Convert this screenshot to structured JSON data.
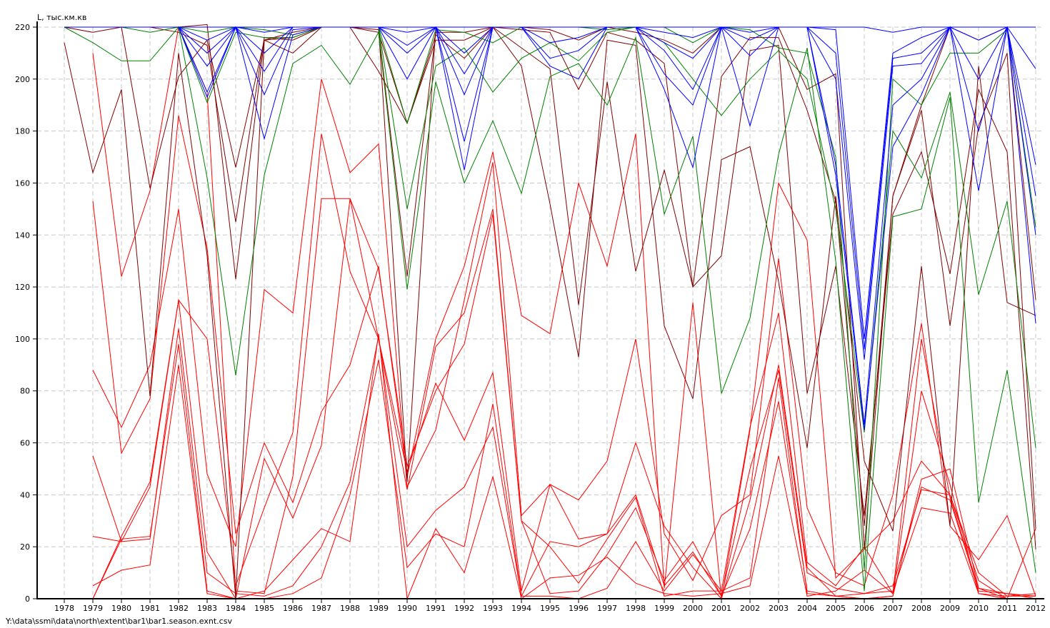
{
  "footer": {
    "path": "Y:\\data\\ssmi\\data\\north\\extent\\bar1\\bar1.season.exnt.csv"
  },
  "chart_data": {
    "type": "line",
    "title": "",
    "ylabel": "L, тыс.км.кв",
    "xlabel": "",
    "x": [
      1978,
      1979,
      1980,
      1981,
      1982,
      1983,
      1984,
      1985,
      1986,
      1987,
      1988,
      1989,
      1990,
      1991,
      1992,
      1993,
      1994,
      1995,
      1996,
      1997,
      1998,
      1999,
      2000,
      2001,
      2002,
      2003,
      2004,
      2005,
      2006,
      2007,
      2008,
      2009,
      2010,
      2011,
      2012
    ],
    "xlim": [
      1978,
      2012
    ],
    "ylim": [
      0,
      220
    ],
    "yticks": [
      0,
      20,
      40,
      60,
      80,
      100,
      120,
      140,
      160,
      180,
      200,
      220
    ],
    "grid": true,
    "legend": "none",
    "colors": {
      "red": "#ff0000",
      "darkred": "#800000",
      "green": "#008000",
      "blue": "#0000ff"
    },
    "series": [
      {
        "color": "#ff0000",
        "values": [
          null,
          0,
          23,
          24,
          98,
          3,
          0,
          3,
          15,
          27,
          22,
          102,
          0,
          27,
          10,
          47,
          0,
          8,
          9,
          16,
          6,
          2,
          1,
          2,
          5,
          55,
          1,
          3,
          11,
          2,
          43,
          38,
          3,
          2,
          1
        ]
      },
      {
        "color": "#ff0000",
        "values": [
          null,
          5,
          11,
          13,
          90,
          2,
          0,
          0,
          2,
          8,
          40,
          92,
          12,
          25,
          20,
          75,
          1,
          1,
          0,
          4,
          22,
          3,
          17,
          3,
          8,
          85,
          2,
          1,
          2,
          3,
          35,
          33,
          2,
          1,
          1
        ]
      },
      {
        "color": "#ff0000",
        "values": [
          null,
          24,
          22,
          23,
          104,
          10,
          2,
          1,
          5,
          20,
          45,
          101,
          20,
          34,
          43,
          66,
          1,
          22,
          20,
          25,
          40,
          5,
          18,
          1,
          50,
          88,
          10,
          4,
          2,
          5,
          42,
          40,
          10,
          1,
          2
        ]
      },
      {
        "color": "#ff0000",
        "values": [
          null,
          55,
          22,
          43,
          115,
          18,
          0,
          54,
          31,
          59,
          154,
          127,
          51,
          80,
          98,
          148,
          30,
          2,
          3,
          17,
          35,
          7,
          22,
          1,
          27,
          76,
          3,
          1,
          0,
          1,
          46,
          50,
          4,
          2,
          0
        ]
      },
      {
        "color": "#ff0000",
        "values": [
          null,
          88,
          66,
          90,
          150,
          48,
          20,
          119,
          110,
          200,
          164,
          175,
          43,
          65,
          115,
          168,
          32,
          44,
          38,
          53,
          100,
          25,
          7,
          32,
          40,
          131,
          35,
          10,
          5,
          40,
          106,
          28,
          15,
          32,
          1
        ]
      },
      {
        "color": "#ff0000",
        "values": [
          null,
          153,
          56,
          77,
          186,
          135,
          25,
          60,
          37,
          72,
          90,
          128,
          47,
          100,
          128,
          172,
          109,
          102,
          160,
          128,
          179,
          4,
          114,
          0,
          65,
          160,
          138,
          8,
          19,
          30,
          53,
          40,
          7,
          0,
          27
        ]
      },
      {
        "color": "#ff0000",
        "values": [
          null,
          210,
          124,
          157,
          220,
          195,
          3,
          2,
          47,
          154,
          154,
          100,
          49,
          83,
          61,
          87,
          3,
          44,
          23,
          25,
          60,
          28,
          12,
          0,
          38,
          90,
          12,
          1,
          0,
          1,
          80,
          44,
          2,
          0,
          0
        ]
      },
      {
        "color": "#ff0000",
        "values": [
          null,
          0,
          24,
          45,
          115,
          100,
          5,
          35,
          64,
          179,
          126,
          100,
          42,
          97,
          110,
          150,
          30,
          20,
          6,
          23,
          39,
          1,
          3,
          3,
          66,
          110,
          14,
          5,
          20,
          2,
          100,
          39,
          4,
          0,
          0
        ]
      },
      {
        "color": "#800000",
        "values": [
          214,
          164,
          196,
          78,
          210,
          132,
          0,
          215,
          216,
          220,
          220,
          218,
          183,
          215,
          215,
          220,
          205,
          152,
          93,
          215,
          213,
          105,
          77,
          169,
          174,
          122,
          58,
          155,
          53,
          26,
          128,
          28,
          205,
          114,
          109
        ]
      },
      {
        "color": "#800000",
        "values": [
          220,
          218,
          220,
          158,
          201,
          215,
          166,
          215,
          210,
          220,
          220,
          203,
          183,
          217,
          208,
          220,
          212,
          204,
          113,
          199,
          126,
          165,
          120,
          132,
          211,
          213,
          79,
          128,
          32,
          148,
          172,
          125,
          196,
          172,
          19
        ]
      },
      {
        "color": "#800000",
        "values": [
          220,
          220,
          220,
          220,
          218,
          213,
          145,
          216,
          215,
          220,
          220,
          219,
          124,
          218,
          218,
          220,
          219,
          218,
          196,
          218,
          215,
          206,
          120,
          201,
          216,
          216,
          188,
          153,
          28,
          155,
          188,
          105,
          182,
          210,
          27
        ]
      },
      {
        "color": "#800000",
        "values": [
          220,
          220,
          220,
          220,
          220,
          221,
          123,
          215,
          218,
          220,
          220,
          220,
          45,
          220,
          220,
          220,
          220,
          219,
          215,
          220,
          218,
          215,
          210,
          220,
          220,
          220,
          196,
          202,
          19,
          155,
          190,
          220,
          215,
          220,
          115
        ]
      },
      {
        "color": "#008000",
        "values": [
          220,
          214,
          207,
          207,
          220,
          162,
          86,
          163,
          206,
          213,
          198,
          218,
          119,
          199,
          160,
          184,
          156,
          201,
          206,
          190,
          216,
          148,
          178,
          79,
          108,
          171,
          212,
          130,
          3,
          147,
          150,
          193,
          37,
          88,
          10
        ]
      },
      {
        "color": "#008000",
        "values": [
          220,
          220,
          220,
          218,
          220,
          191,
          218,
          216,
          216,
          220,
          220,
          220,
          150,
          205,
          212,
          195,
          208,
          214,
          207,
          218,
          220,
          214,
          200,
          186,
          200,
          211,
          200,
          150,
          64,
          180,
          162,
          195,
          117,
          153,
          58
        ]
      },
      {
        "color": "#008000",
        "values": [
          220,
          220,
          220,
          220,
          220,
          218,
          220,
          219,
          217,
          220,
          220,
          220,
          183,
          219,
          218,
          214,
          220,
          220,
          220,
          219,
          220,
          220,
          214,
          220,
          219,
          212,
          210,
          170,
          11,
          200,
          190,
          210,
          210,
          219,
          143
        ]
      },
      {
        "color": "#0000ff",
        "values": [
          220,
          220,
          220,
          220,
          220,
          193,
          220,
          177,
          217,
          220,
          220,
          220,
          200,
          220,
          165,
          220,
          220,
          205,
          200,
          220,
          220,
          196,
          166,
          220,
          182,
          220,
          220,
          163,
          65,
          174,
          194,
          220,
          157,
          220,
          106
        ]
      },
      {
        "color": "#0000ff",
        "values": [
          220,
          220,
          220,
          220,
          220,
          195,
          220,
          194,
          219,
          220,
          220,
          220,
          210,
          220,
          176,
          220,
          220,
          208,
          211,
          220,
          220,
          202,
          190,
          220,
          209,
          220,
          220,
          167,
          67,
          190,
          200,
          220,
          180,
          220,
          140
        ]
      },
      {
        "color": "#0000ff",
        "values": [
          220,
          220,
          220,
          220,
          220,
          205,
          220,
          203,
          220,
          220,
          220,
          220,
          213,
          220,
          194,
          220,
          220,
          214,
          216,
          220,
          220,
          211,
          196,
          220,
          215,
          220,
          220,
          200,
          92,
          205,
          206,
          220,
          200,
          220,
          155
        ]
      },
      {
        "color": "#0000ff",
        "values": [
          220,
          220,
          220,
          220,
          220,
          210,
          220,
          210,
          220,
          220,
          220,
          220,
          218,
          220,
          202,
          220,
          220,
          220,
          220,
          220,
          220,
          214,
          208,
          220,
          218,
          220,
          220,
          210,
          96,
          208,
          210,
          220,
          215,
          220,
          167
        ]
      },
      {
        "color": "#0000ff",
        "values": [
          220,
          220,
          220,
          220,
          220,
          215,
          220,
          218,
          220,
          220,
          220,
          220,
          220,
          220,
          210,
          220,
          220,
          220,
          220,
          220,
          220,
          218,
          216,
          220,
          220,
          220,
          220,
          219,
          100,
          210,
          216,
          220,
          220,
          220,
          204
        ]
      },
      {
        "color": "#0000ff",
        "values": [
          220,
          220,
          220,
          220,
          220,
          220,
          220,
          220,
          220,
          220,
          220,
          220,
          220,
          220,
          220,
          220,
          220,
          220,
          220,
          220,
          220,
          220,
          220,
          220,
          220,
          220,
          220,
          220,
          220,
          218,
          220,
          220,
          220,
          220,
          220
        ]
      }
    ]
  }
}
